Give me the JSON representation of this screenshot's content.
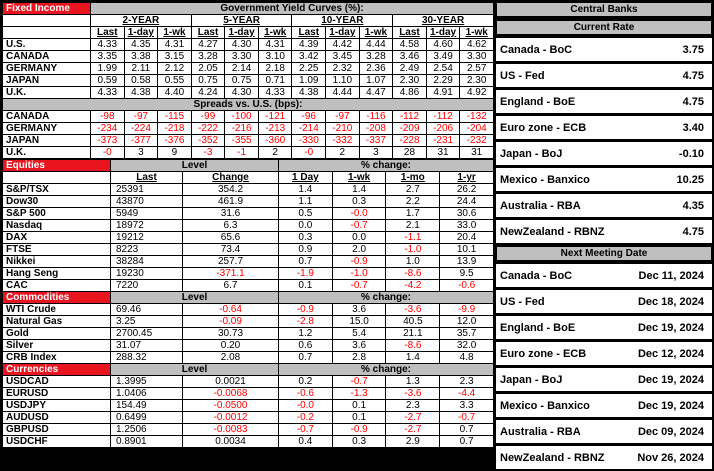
{
  "colors": {
    "section_red": "#e8141e",
    "header_gray": "#bfbfbf",
    "negative_text": "#ff0000"
  },
  "fixed_income": {
    "section_label": "Fixed Income",
    "title": "Government Yield Curves (%):",
    "groups": [
      "2-YEAR",
      "5-YEAR",
      "10-YEAR",
      "30-YEAR"
    ],
    "sub_headers": [
      "Last",
      "1-day",
      "1-wk"
    ],
    "rows": [
      {
        "label": "U.S.",
        "values": [
          "4.33",
          "4.35",
          "4.31",
          "4.27",
          "4.30",
          "4.31",
          "4.39",
          "4.42",
          "4.44",
          "4.58",
          "4.60",
          "4.62"
        ]
      },
      {
        "label": "CANADA",
        "values": [
          "3.35",
          "3.38",
          "3.15",
          "3.28",
          "3.30",
          "3.10",
          "3.42",
          "3.45",
          "3.28",
          "3.46",
          "3.49",
          "3.30"
        ]
      },
      {
        "label": "GERMANY",
        "values": [
          "1.99",
          "2.11",
          "2.12",
          "2.05",
          "2.14",
          "2.18",
          "2.25",
          "2.32",
          "2.36",
          "2.49",
          "2.54",
          "2.57"
        ]
      },
      {
        "label": "JAPAN",
        "values": [
          "0.59",
          "0.58",
          "0.55",
          "0.75",
          "0.75",
          "0.71",
          "1.09",
          "1.10",
          "1.07",
          "2.30",
          "2.29",
          "2.30"
        ]
      },
      {
        "label": "U.K.",
        "values": [
          "4.33",
          "4.38",
          "4.40",
          "4.24",
          "4.30",
          "4.33",
          "4.38",
          "4.44",
          "4.47",
          "4.86",
          "4.91",
          "4.92"
        ]
      }
    ],
    "spreads": {
      "title": "Spreads vs. U.S. (bps):",
      "rows": [
        {
          "label": "CANADA",
          "values": [
            "-98",
            "-97",
            "-115",
            "-99",
            "-100",
            "-121",
            "-96",
            "-97",
            "-116",
            "-112",
            "-112",
            "-132"
          ]
        },
        {
          "label": "GERMANY",
          "values": [
            "-234",
            "-224",
            "-218",
            "-222",
            "-216",
            "-213",
            "-214",
            "-210",
            "-208",
            "-209",
            "-206",
            "-204"
          ]
        },
        {
          "label": "JAPAN",
          "values": [
            "-373",
            "-377",
            "-376",
            "-352",
            "-355",
            "-360",
            "-330",
            "-332",
            "-337",
            "-228",
            "-231",
            "-232"
          ]
        },
        {
          "label": "U.K.",
          "values": [
            "-0",
            "3",
            "9",
            "-3",
            "-1",
            "2",
            "-0",
            "2",
            "3",
            "28",
            "31",
            "31"
          ]
        }
      ]
    }
  },
  "equities": {
    "section_label": "Equities",
    "level_label": "Level",
    "pct_label": "% change:",
    "col_headers": [
      "Last",
      "Change",
      "1 Day",
      "1-wk",
      "1-mo",
      "1-yr"
    ],
    "rows": [
      {
        "label": "S&P/TSX",
        "last": "25391",
        "change": "354.2",
        "pct": [
          "1.4",
          "1.4",
          "2.7",
          "26.2"
        ]
      },
      {
        "label": "Dow30",
        "last": "43870",
        "change": "461.9",
        "pct": [
          "1.1",
          "0.3",
          "2.2",
          "24.4"
        ]
      },
      {
        "label": "S&P 500",
        "last": "5949",
        "change": "31.6",
        "pct": [
          "0.5",
          "-0.0",
          "1.7",
          "30.6"
        ]
      },
      {
        "label": "Nasdaq",
        "last": "18972",
        "change": "6.3",
        "pct": [
          "0.0",
          "-0.7",
          "2.1",
          "33.0"
        ]
      },
      {
        "label": "DAX",
        "last": "19212",
        "change": "65.6",
        "pct": [
          "0.3",
          "0.0",
          "-1.1",
          "20.4"
        ]
      },
      {
        "label": "FTSE",
        "last": "8223",
        "change": "73.4",
        "pct": [
          "0.9",
          "2.0",
          "-1.0",
          "10.1"
        ]
      },
      {
        "label": "Nikkei",
        "last": "38284",
        "change": "257.7",
        "pct": [
          "0.7",
          "-0.9",
          "1.0",
          "13.9"
        ]
      },
      {
        "label": "Hang Seng",
        "last": "19230",
        "change": "-371.1",
        "pct": [
          "-1.9",
          "-1.0",
          "-8.6",
          "9.5"
        ]
      },
      {
        "label": "CAC",
        "last": "7220",
        "change": "6.7",
        "pct": [
          "0.1",
          "-0.7",
          "-4.2",
          "-0.6"
        ]
      }
    ]
  },
  "commodities": {
    "section_label": "Commodities",
    "level_label": "Level",
    "pct_label": "% change:",
    "rows": [
      {
        "label": "WTI Crude",
        "last": "69.46",
        "change": "-0.64",
        "pct": [
          "-0.9",
          "3.6",
          "-3.6",
          "-9.9"
        ]
      },
      {
        "label": "Natural Gas",
        "last": "3.25",
        "change": "-0.09",
        "pct": [
          "-2.8",
          "15.0",
          "40.5",
          "12.0"
        ]
      },
      {
        "label": "Gold",
        "last": "2700.45",
        "change": "30.73",
        "pct": [
          "1.2",
          "5.4",
          "21.1",
          "35.7"
        ]
      },
      {
        "label": "Silver",
        "last": "31.07",
        "change": "0.20",
        "pct": [
          "0.6",
          "3.6",
          "-8.6",
          "32.0"
        ]
      },
      {
        "label": "CRB Index",
        "last": "288.32",
        "change": "2.08",
        "pct": [
          "0.7",
          "2.8",
          "1.4",
          "4.8"
        ]
      }
    ]
  },
  "currencies": {
    "section_label": "Currencies",
    "level_label": "Level",
    "pct_label": "% change:",
    "rows": [
      {
        "label": "USDCAD",
        "last": "1.3995",
        "change": "0.0021",
        "pct": [
          "0.2",
          "-0.7",
          "1.3",
          "2.3"
        ]
      },
      {
        "label": "EURUSD",
        "last": "1.0406",
        "change": "-0.0068",
        "pct": [
          "-0.6",
          "-1.3",
          "-3.6",
          "-4.4"
        ]
      },
      {
        "label": "USDJPY",
        "last": "154.49",
        "change": "-0.0500",
        "pct": [
          "-0.0",
          "0.1",
          "2.3",
          "3.3"
        ]
      },
      {
        "label": "AUDUSD",
        "last": "0.6499",
        "change": "-0.0012",
        "pct": [
          "-0.2",
          "0.1",
          "-2.7",
          "-0.7"
        ]
      },
      {
        "label": "GBPUSD",
        "last": "1.2506",
        "change": "-0.0083",
        "pct": [
          "-0.7",
          "-0.9",
          "-2.7",
          "0.7"
        ]
      },
      {
        "label": "USDCHF",
        "last": "0.8901",
        "change": "0.0034",
        "pct": [
          "0.4",
          "0.3",
          "2.9",
          "0.7"
        ]
      }
    ]
  },
  "central_banks": {
    "title": "Central Banks",
    "sections": [
      {
        "title": "Current Rate",
        "rows": [
          {
            "bank": "Canada - BoC",
            "value": "3.75"
          },
          {
            "bank": "US - Fed",
            "value": "4.75"
          },
          {
            "bank": "England - BoE",
            "value": "4.75"
          },
          {
            "bank": "Euro zone - ECB",
            "value": "3.40"
          },
          {
            "bank": "Japan - BoJ",
            "value": "-0.10"
          },
          {
            "bank": "Mexico - Banxico",
            "value": "10.25"
          },
          {
            "bank": "Australia - RBA",
            "value": "4.35"
          },
          {
            "bank": "NewZealand - RBNZ",
            "value": "4.75"
          }
        ]
      },
      {
        "title": "Next Meeting Date",
        "rows": [
          {
            "bank": "Canada - BoC",
            "value": "Dec 11, 2024"
          },
          {
            "bank": "US - Fed",
            "value": "Dec 18, 2024"
          },
          {
            "bank": "England - BoE",
            "value": "Dec 19, 2024"
          },
          {
            "bank": "Euro zone - ECB",
            "value": "Dec 12, 2024"
          },
          {
            "bank": "Japan - BoJ",
            "value": "Dec 19, 2024"
          },
          {
            "bank": "Mexico - Banxico",
            "value": "Dec 19, 2024"
          },
          {
            "bank": "Australia - RBA",
            "value": "Dec 09, 2024"
          },
          {
            "bank": "NewZealand - RBNZ",
            "value": "Nov 26, 2024"
          }
        ]
      }
    ]
  }
}
